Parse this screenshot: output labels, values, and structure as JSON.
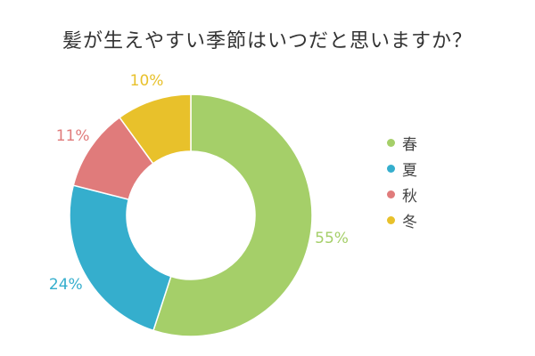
{
  "chart_data": {
    "type": "pie",
    "title": "髪が生えやすい季節はいつだと思いますか？",
    "categories": [
      "春",
      "夏",
      "秋",
      "冬"
    ],
    "values": [
      55,
      24,
      11,
      10
    ],
    "labels": [
      "55%",
      "24%",
      "11%",
      "10%"
    ],
    "colors": [
      "#a5cf69",
      "#35aecd",
      "#e07b7b",
      "#e8c12b"
    ],
    "donut": true,
    "legend_position": "right"
  }
}
